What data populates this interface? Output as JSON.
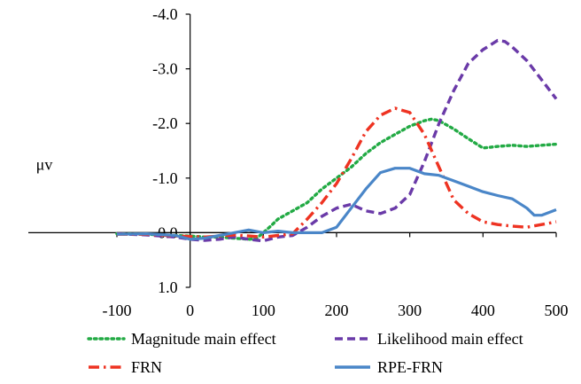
{
  "chart_data": {
    "type": "line",
    "title": "",
    "xlabel": "",
    "ylabel": "μv",
    "xlim": [
      -100,
      500
    ],
    "ylim": [
      1.0,
      -4.0
    ],
    "y_inverted": true,
    "x_ticks": [
      "-100",
      "0",
      "100",
      "200",
      "300",
      "400",
      "500"
    ],
    "y_ticks": [
      "-4.0",
      "-3.0",
      "-2.0",
      "-1.0",
      "0.0",
      "1.0"
    ],
    "grid": false,
    "legend_position": "bottom",
    "series": [
      {
        "name": "Magnitude main effect",
        "color": "#22aa44",
        "style": "dotted",
        "x": [
          -100,
          -60,
          -20,
          0,
          20,
          40,
          60,
          80,
          90,
          100,
          110,
          120,
          140,
          160,
          180,
          200,
          220,
          240,
          260,
          280,
          300,
          320,
          330,
          340,
          360,
          380,
          400,
          420,
          440,
          460,
          480,
          500
        ],
        "y": [
          0.02,
          0.03,
          0.05,
          0.06,
          0.08,
          0.08,
          0.1,
          0.12,
          0.11,
          0.0,
          -0.12,
          -0.25,
          -0.4,
          -0.55,
          -0.8,
          -1.0,
          -1.2,
          -1.45,
          -1.65,
          -1.8,
          -1.95,
          -2.05,
          -2.08,
          -2.05,
          -1.9,
          -1.72,
          -1.55,
          -1.58,
          -1.6,
          -1.58,
          -1.6,
          -1.62
        ]
      },
      {
        "name": "Likelihood main effect",
        "color": "#6a3aa8",
        "style": "dashed",
        "x": [
          -100,
          -60,
          -20,
          0,
          20,
          40,
          60,
          80,
          100,
          120,
          140,
          160,
          180,
          200,
          220,
          240,
          260,
          280,
          300,
          320,
          340,
          360,
          380,
          400,
          420,
          430,
          440,
          460,
          480,
          500
        ],
        "y": [
          0.02,
          0.04,
          0.08,
          0.12,
          0.14,
          0.12,
          0.08,
          0.12,
          0.15,
          0.08,
          0.05,
          -0.1,
          -0.3,
          -0.45,
          -0.52,
          -0.4,
          -0.35,
          -0.45,
          -0.7,
          -1.3,
          -2.0,
          -2.6,
          -3.1,
          -3.35,
          -3.52,
          -3.5,
          -3.4,
          -3.15,
          -2.8,
          -2.45
        ]
      },
      {
        "name": "FRN",
        "color": "#ee3322",
        "style": "dashdot",
        "x": [
          -100,
          -60,
          -20,
          0,
          20,
          40,
          60,
          80,
          100,
          120,
          140,
          160,
          180,
          200,
          220,
          240,
          260,
          280,
          300,
          320,
          340,
          360,
          380,
          400,
          420,
          440,
          460,
          480,
          500
        ],
        "y": [
          0.03,
          0.03,
          0.06,
          0.07,
          0.08,
          0.06,
          0.04,
          0.06,
          0.08,
          0.05,
          0.02,
          -0.25,
          -0.55,
          -0.9,
          -1.35,
          -1.85,
          -2.15,
          -2.28,
          -2.2,
          -1.8,
          -1.2,
          -0.6,
          -0.35,
          -0.2,
          -0.15,
          -0.12,
          -0.1,
          -0.15,
          -0.2
        ]
      },
      {
        "name": "RPE-FRN",
        "color": "#4a86c8",
        "style": "solid",
        "x": [
          -100,
          -60,
          -20,
          0,
          20,
          40,
          60,
          80,
          100,
          120,
          140,
          160,
          180,
          200,
          220,
          240,
          260,
          280,
          300,
          320,
          340,
          360,
          380,
          400,
          420,
          440,
          460,
          470,
          480,
          500
        ],
        "y": [
          0.03,
          0.02,
          0.05,
          0.12,
          0.1,
          0.05,
          0.0,
          -0.05,
          0.0,
          -0.03,
          0.0,
          0.0,
          0.0,
          -0.1,
          -0.45,
          -0.8,
          -1.1,
          -1.18,
          -1.18,
          -1.08,
          -1.05,
          -0.95,
          -0.85,
          -0.75,
          -0.68,
          -0.62,
          -0.45,
          -0.32,
          -0.32,
          -0.42
        ]
      }
    ]
  }
}
